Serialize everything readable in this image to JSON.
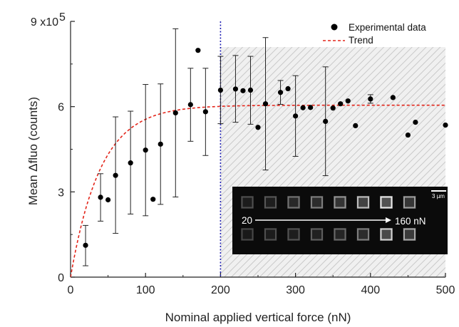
{
  "chart_data": {
    "type": "scatter",
    "title": "",
    "xlabel": "Nominal applied vertical force (nN)",
    "ylabel": "Mean Δfluo (counts)",
    "xlim": [
      0,
      500
    ],
    "ylim": [
      0,
      900000
    ],
    "x_ticks": [
      0,
      100,
      200,
      300,
      400,
      500
    ],
    "x_tick_labels": [
      "0",
      "100",
      "200",
      "300",
      "400",
      "500"
    ],
    "y_ticks": [
      0,
      300000,
      600000,
      900000
    ],
    "y_tick_labels": [
      "0",
      "3",
      "6",
      "9 x10"
    ],
    "y_exponent": "5",
    "grid": false,
    "legend_position": "top-right",
    "legend": [
      {
        "label": "Experimental data",
        "marker": "filled-circle",
        "color": "#000000"
      },
      {
        "label": "Trend",
        "marker": "dashed-line",
        "color": "#e3261b"
      }
    ],
    "series": [
      {
        "name": "Experimental data",
        "type": "scatter",
        "color": "#000000",
        "points": [
          {
            "x": 20,
            "y": 112000,
            "err_low": 40000,
            "err_high": 182000
          },
          {
            "x": 40,
            "y": 281000,
            "err_low": 197000,
            "err_high": 364000
          },
          {
            "x": 50,
            "y": 272000
          },
          {
            "x": 60,
            "y": 358000,
            "err_low": 154000,
            "err_high": 564000
          },
          {
            "x": 80,
            "y": 402000,
            "err_low": 222000,
            "err_high": 584000
          },
          {
            "x": 100,
            "y": 447000,
            "err_low": 216000,
            "err_high": 678000
          },
          {
            "x": 110,
            "y": 274000
          },
          {
            "x": 120,
            "y": 468000,
            "err_low": 256000,
            "err_high": 680000
          },
          {
            "x": 140,
            "y": 578000,
            "err_low": 282000,
            "err_high": 874000
          },
          {
            "x": 160,
            "y": 607000,
            "err_low": 478000,
            "err_high": 735000
          },
          {
            "x": 170,
            "y": 798000
          },
          {
            "x": 180,
            "y": 582000,
            "err_low": 428000,
            "err_high": 735000
          },
          {
            "x": 200,
            "y": 658000,
            "err_low": 540000,
            "err_high": 777000
          },
          {
            "x": 220,
            "y": 662000,
            "err_low": 545000,
            "err_high": 780000
          },
          {
            "x": 230,
            "y": 656000
          },
          {
            "x": 240,
            "y": 658000,
            "err_low": 538000,
            "err_high": 777000
          },
          {
            "x": 250,
            "y": 527000
          },
          {
            "x": 260,
            "y": 610000,
            "err_low": 377000,
            "err_high": 843000
          },
          {
            "x": 280,
            "y": 650000,
            "err_low": 608000,
            "err_high": 692000
          },
          {
            "x": 290,
            "y": 663000
          },
          {
            "x": 300,
            "y": 567000,
            "err_low": 425000,
            "err_high": 709000
          },
          {
            "x": 310,
            "y": 596000
          },
          {
            "x": 320,
            "y": 597000
          },
          {
            "x": 340,
            "y": 548000,
            "err_low": 357000,
            "err_high": 740000
          },
          {
            "x": 350,
            "y": 595000
          },
          {
            "x": 360,
            "y": 610000
          },
          {
            "x": 370,
            "y": 620000
          },
          {
            "x": 380,
            "y": 533000
          },
          {
            "x": 400,
            "y": 627000,
            "err_low": 612000,
            "err_high": 642000
          },
          {
            "x": 430,
            "y": 632000
          },
          {
            "x": 450,
            "y": 500000
          },
          {
            "x": 460,
            "y": 545000
          },
          {
            "x": 500,
            "y": 535000
          }
        ]
      },
      {
        "name": "Trend",
        "type": "line",
        "style": "dashed",
        "color": "#e3261b",
        "function": "A*(1 - exp(-x/tau))",
        "A": 605000,
        "tau": 40
      }
    ],
    "annotations": {
      "vertical_reference_line": {
        "x": 200,
        "color": "#1f1fb4",
        "style": "dotted"
      },
      "shaded_region": {
        "x_from": 200,
        "x_to": 500,
        "pattern": "diagonal-hatch"
      }
    },
    "inset": {
      "scale_bar_label": "3 µm",
      "force_start_label": "20",
      "force_end_label": "160 nN",
      "columns": 8,
      "rows": 2,
      "row1_brightness": [
        0.18,
        0.22,
        0.35,
        0.4,
        0.5,
        0.7,
        0.9,
        0.55
      ],
      "row2_brightness": [
        0.15,
        0.18,
        0.2,
        0.25,
        0.3,
        0.4,
        0.8,
        0.6
      ]
    }
  }
}
